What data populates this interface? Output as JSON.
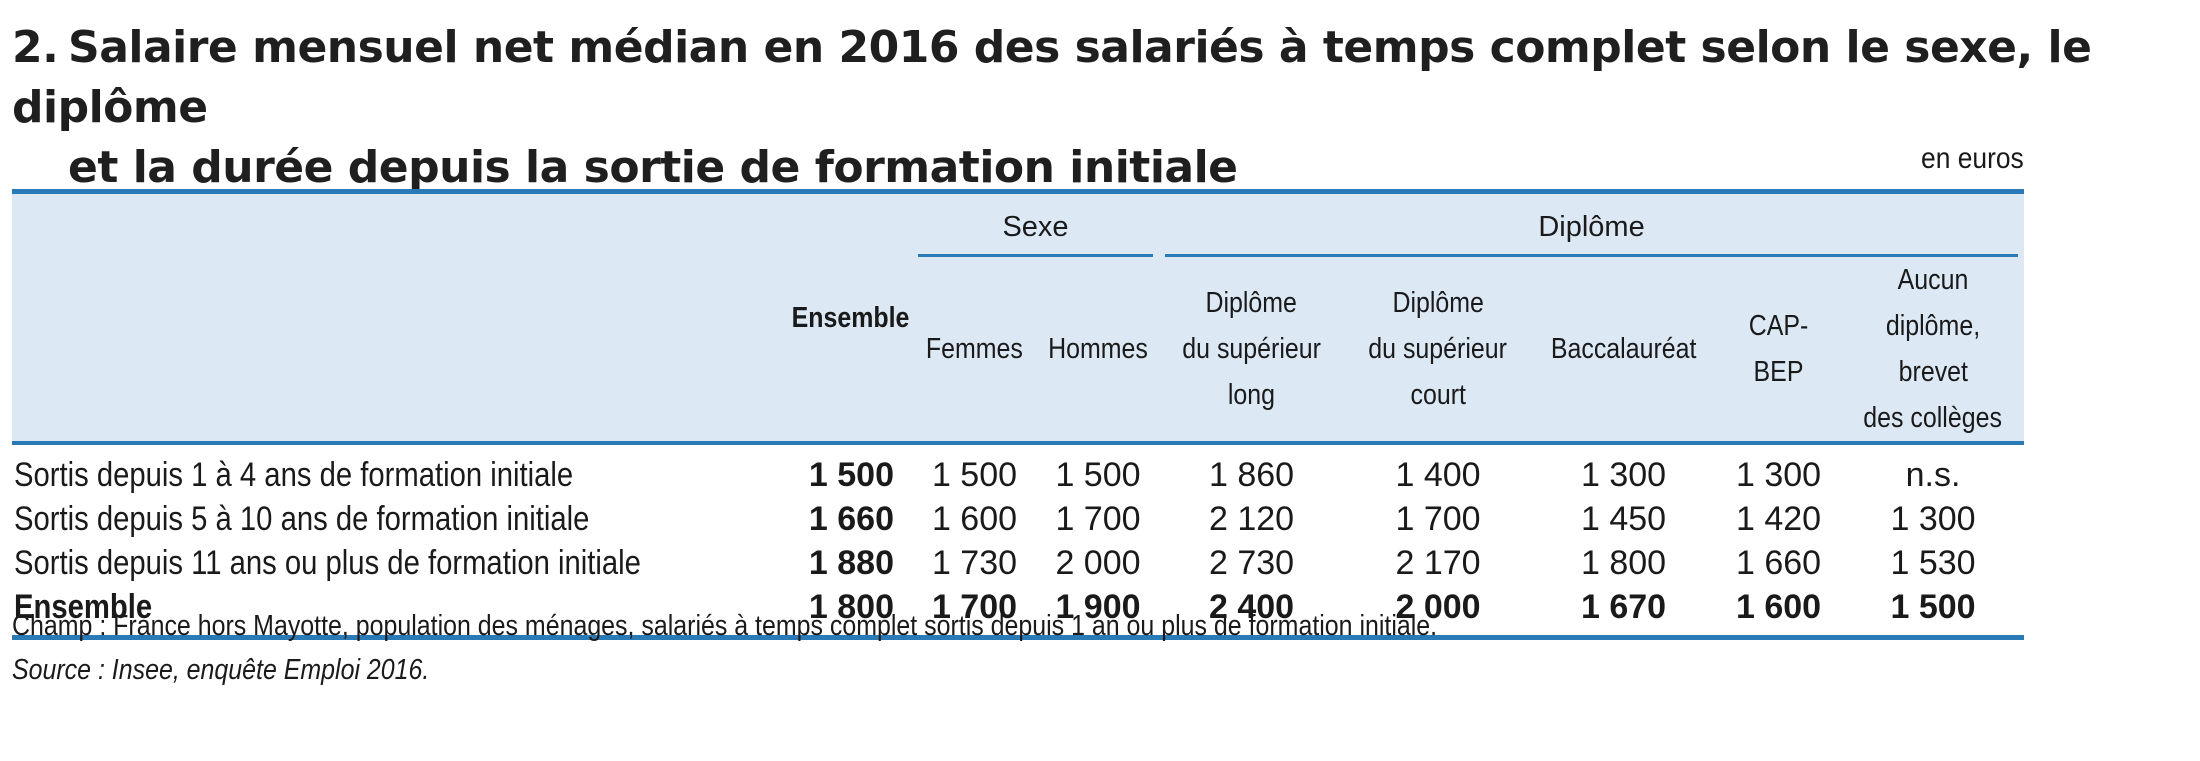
{
  "title": {
    "number": "2.",
    "line1": "Salaire mensuel net médian en 2016 des salariés à temps complet selon le sexe, le diplôme",
    "line2": "et la durée depuis la sortie de formation initiale"
  },
  "unit": "en euros",
  "chart_data": {
    "type": "table",
    "column_groups": [
      {
        "label": "",
        "span": 2
      },
      {
        "label": "Sexe",
        "span": 2
      },
      {
        "label": "Diplôme",
        "span": 5
      }
    ],
    "columns": {
      "ensemble": "Ensemble",
      "femmes": "Femmes",
      "hommes": "Hommes",
      "sup_long": [
        "Diplôme",
        "du supérieur",
        "long"
      ],
      "sup_court": [
        "Diplôme",
        "du supérieur",
        "court"
      ],
      "bac": "Baccalauréat",
      "cap": "CAP-BEP",
      "aucun": [
        "Aucun diplôme,",
        "brevet",
        "des collèges"
      ]
    },
    "rows": [
      {
        "label": "Sortis depuis 1 à 4 ans de formation initiale",
        "values": [
          "1 500",
          "1 500",
          "1 500",
          "1 860",
          "1 400",
          "1 300",
          "1 300",
          "n.s."
        ]
      },
      {
        "label": "Sortis depuis 5 à 10 ans de formation initiale",
        "values": [
          "1 660",
          "1 600",
          "1 700",
          "2 120",
          "1 700",
          "1 450",
          "1 420",
          "1 300"
        ]
      },
      {
        "label": "Sortis depuis 11 ans ou plus de formation initiale",
        "values": [
          "1 880",
          "1 730",
          "2 000",
          "2 730",
          "2 170",
          "1 800",
          "1 660",
          "1 530"
        ]
      },
      {
        "label": "Ensemble",
        "values": [
          "1 800",
          "1 700",
          "1 900",
          "2 400",
          "2 000",
          "1 670",
          "1 600",
          "1 500"
        ]
      }
    ]
  },
  "notes": {
    "champ": "Champ : France hors Mayotte, population des ménages, salariés à temps complet sortis depuis 1 an ou plus de formation initiale.",
    "source": "Source : Insee, enquête Emploi 2016."
  },
  "colors": {
    "rule": "#2b7ab8",
    "header_band": "#dce9f5"
  }
}
